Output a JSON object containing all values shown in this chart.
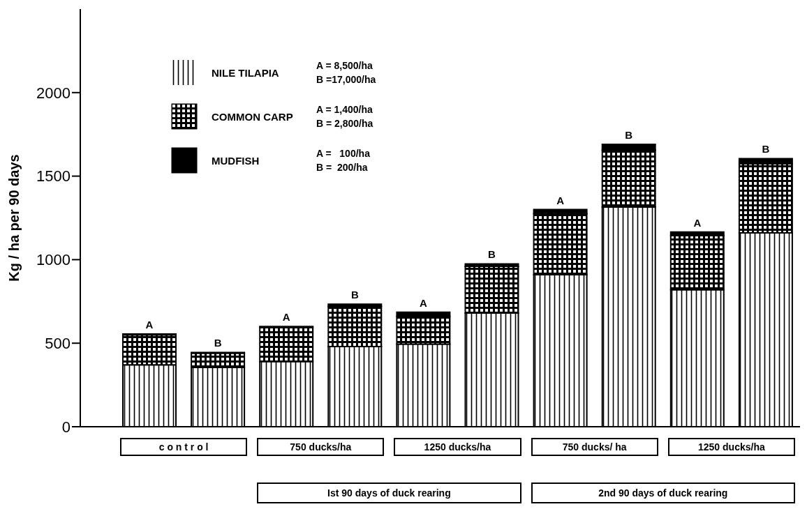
{
  "chart_data": {
    "type": "bar",
    "stacked": true,
    "ylabel": "Kg / ha per 90 days",
    "categories": [
      "A",
      "B",
      "A",
      "B",
      "A",
      "B",
      "A",
      "B",
      "A",
      "B"
    ],
    "series": [
      {
        "name": "NILE TILAPIA",
        "color": "#000000",
        "values": [
          370,
          355,
          390,
          480,
          495,
          680,
          910,
          1315,
          820,
          1160
        ]
      },
      {
        "name": "COMMON CARP",
        "color": "#000000",
        "values": [
          180,
          85,
          205,
          240,
          165,
          280,
          365,
          340,
          325,
          415
        ]
      },
      {
        "name": "MUDFISH",
        "color": "#000000",
        "values": [
          5,
          5,
          5,
          13,
          25,
          15,
          25,
          35,
          20,
          30
        ]
      }
    ],
    "ylim": [
      0,
      2500
    ],
    "yticks": [
      0,
      500,
      1000,
      1500,
      2000
    ],
    "legend": "top left",
    "grid": false,
    "annotations": [
      "c o n t r o l",
      "750 ducks/ha",
      "1250 ducks/ha",
      "750 ducks/ ha",
      "1250 ducks/ha",
      "Ist 90 days of duck rearing",
      "2nd 90 days of duck rearing",
      "A = 8,500/ha",
      "B =17,000/ha",
      "A = 1,400/ha",
      "B = 2,800/ha",
      "A =   100/ha",
      "B =  200/ha"
    ]
  }
}
